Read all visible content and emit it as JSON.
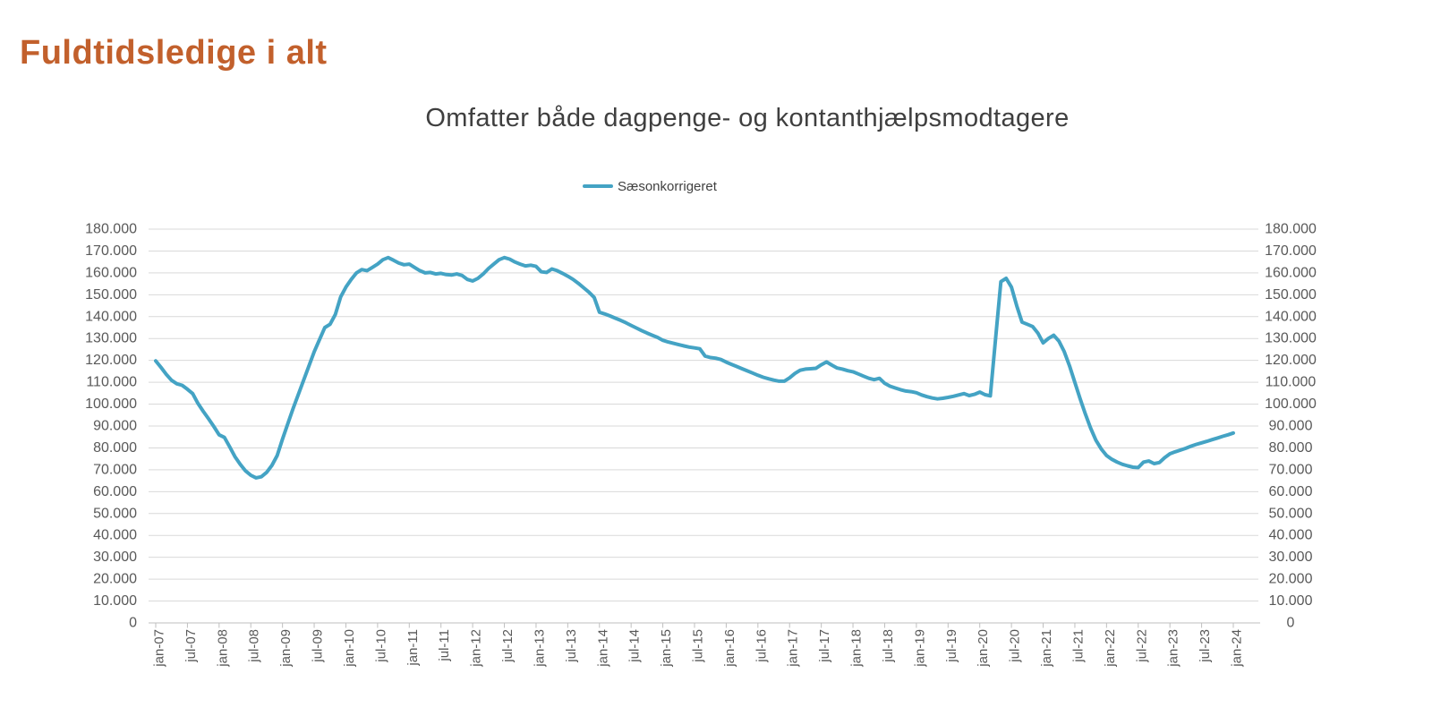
{
  "page": {
    "title": "Fuldtidsledige i alt",
    "title_color": "#C2602C",
    "background_color": "#FFFFFF"
  },
  "chart": {
    "subtitle": "Omfatter både dagpenge- og kontanthjælpsmodtagere",
    "subtitle_color": "#3F3F3F",
    "legend": {
      "label": "Sæsonkorrigeret"
    },
    "colors": {
      "gridline": "#D9D9D9",
      "axis_line": "#BFBFBF",
      "tick_text": "#595959"
    }
  },
  "chart_data": {
    "type": "line",
    "title": "Omfatter både dagpenge- og kontanthjælpsmodtagere",
    "xlabel": "",
    "ylabel": "",
    "ylim": [
      0,
      180000
    ],
    "y_step": 10000,
    "grid": "horizontal",
    "legend_position": "top-center",
    "frequency": "monthly",
    "x_start": "jan-07",
    "x_end": "jan-24",
    "x_tick_labels": [
      "jan-07",
      "jul-07",
      "jan-08",
      "jul-08",
      "jan-09",
      "jul-09",
      "jan-10",
      "jul-10",
      "jan-11",
      "jul-11",
      "jan-12",
      "jul-12",
      "jan-13",
      "jul-13",
      "jan-14",
      "jul-14",
      "jan-15",
      "jul-15",
      "jan-16",
      "jul-16",
      "jan-17",
      "jul-17",
      "jan-18",
      "jul-18",
      "jan-19",
      "jul-19",
      "jan-20",
      "jul-20",
      "jan-21",
      "jul-21",
      "jan-22",
      "jul-22",
      "jan-23",
      "jul-23",
      "jan-24"
    ],
    "y_tick_labels": [
      "180.000",
      "170.000",
      "160.000",
      "150.000",
      "140.000",
      "130.000",
      "120.000",
      "110.000",
      "100.000",
      "90.000",
      "80.000",
      "70.000",
      "60.000",
      "50.000",
      "40.000",
      "30.000",
      "20.000",
      "10.000",
      "0"
    ],
    "series": [
      {
        "name": "Sæsonkorrigeret",
        "color": "#44A3C4",
        "values": [
          119800,
          116800,
          113600,
          110900,
          109300,
          108600,
          106800,
          104800,
          100300,
          96700,
          93300,
          89800,
          86000,
          84800,
          80500,
          76000,
          72500,
          69500,
          67500,
          66300,
          66800,
          68800,
          72000,
          76500,
          84000,
          91000,
          98000,
          104500,
          111000,
          117500,
          124000,
          129500,
          135000,
          136500,
          141000,
          149000,
          153500,
          157000,
          160000,
          161500,
          161000,
          162500,
          164000,
          166000,
          167000,
          165800,
          164500,
          163700,
          164000,
          162500,
          161000,
          160000,
          160200,
          159500,
          159800,
          159200,
          159000,
          159500,
          158800,
          157000,
          156300,
          157500,
          159500,
          162000,
          164000,
          166000,
          167000,
          166300,
          165000,
          164000,
          163200,
          163500,
          163000,
          160500,
          160200,
          161800,
          161000,
          159800,
          158500,
          157000,
          155200,
          153200,
          151200,
          148800,
          142000,
          141200,
          140300,
          139300,
          138300,
          137200,
          136000,
          134800,
          133600,
          132500,
          131500,
          130500,
          129200,
          128400,
          127800,
          127200,
          126600,
          126100,
          125700,
          125300,
          122000,
          121300,
          121000,
          120400,
          119200,
          118200,
          117200,
          116200,
          115200,
          114200,
          113200,
          112300,
          111600,
          111000,
          110500,
          110500,
          112000,
          114000,
          115500,
          116000,
          116200,
          116400,
          118000,
          119300,
          117800,
          116500,
          116000,
          115300,
          114800,
          113800,
          112800,
          111800,
          111200,
          111800,
          109500,
          108200,
          107400,
          106600,
          106000,
          105700,
          105200,
          104200,
          103400,
          102800,
          102400,
          102700,
          103100,
          103600,
          104200,
          104800,
          103900,
          104500,
          105500,
          104300,
          103800,
          130000,
          156000,
          157500,
          153500,
          145000,
          137500,
          136500,
          135500,
          132500,
          128000,
          130000,
          131500,
          128800,
          124000,
          117500,
          110000,
          102500,
          95500,
          89000,
          83500,
          79500,
          76500,
          74800,
          73500,
          72500,
          71800,
          71200,
          71000,
          73500,
          74000,
          72800,
          73300,
          75500,
          77300,
          78200,
          79000,
          79800,
          80800,
          81600,
          82300,
          83000,
          83800,
          84500,
          85300,
          86000,
          86800
        ]
      }
    ]
  }
}
